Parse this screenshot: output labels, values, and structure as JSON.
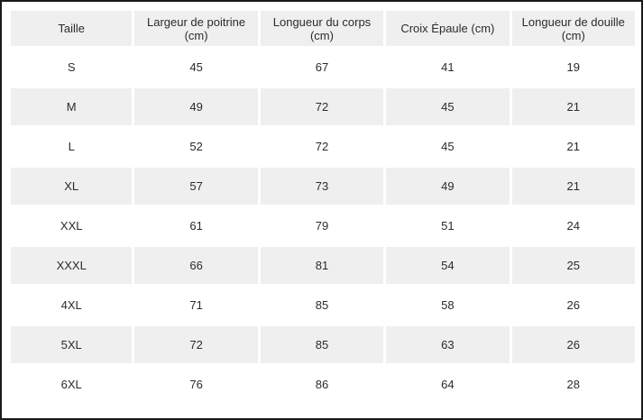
{
  "table": {
    "headers": [
      [
        "Taille"
      ],
      [
        "Largeur de poitrine",
        "(cm)"
      ],
      [
        "Longueur du corps",
        "(cm)"
      ],
      [
        "Croix Épaule (cm)"
      ],
      [
        "Longueur de douille",
        "(cm)"
      ]
    ],
    "rows": [
      [
        "S",
        "45",
        "67",
        "41",
        "19"
      ],
      [
        "M",
        "49",
        "72",
        "45",
        "21"
      ],
      [
        "L",
        "52",
        "72",
        "45",
        "21"
      ],
      [
        "XL",
        "57",
        "73",
        "49",
        "21"
      ],
      [
        "XXL",
        "61",
        "79",
        "51",
        "24"
      ],
      [
        "XXXL",
        "66",
        "81",
        "54",
        "25"
      ],
      [
        "4XL",
        "71",
        "85",
        "58",
        "26"
      ],
      [
        "5XL",
        "72",
        "85",
        "63",
        "26"
      ],
      [
        "6XL",
        "76",
        "86",
        "64",
        "28"
      ]
    ]
  },
  "colors": {
    "header_bg": "#efefef",
    "alt_row_bg": "#efefef",
    "row_bg": "#ffffff",
    "text": "#2b2b2b",
    "frame_border": "#1a1a1a"
  }
}
